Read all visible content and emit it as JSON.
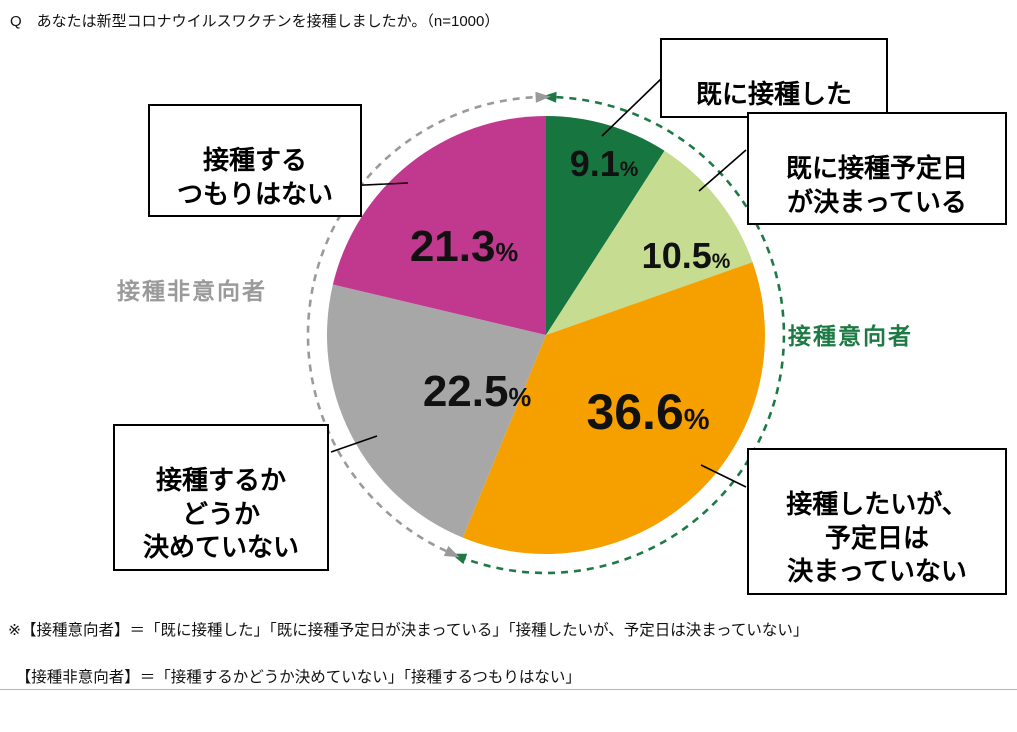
{
  "page": {
    "question": "Q　あなたは新型コロナウイルスワクチンを接種しましたか。（n=1000）",
    "footnote": {
      "line1": "※【接種意向者】＝「既に接種した」「既に接種予定日が決まっている」「接種したいが、予定日は決まっていない」",
      "line2": "　【接種非意向者】＝「接種するかどうか決めていない」「接種するつもりはない」"
    }
  },
  "chart_data": {
    "type": "pie",
    "title": "あなたは新型コロナウイルスワクチンを接種しましたか。",
    "sample_size_label": "n=1000",
    "unit": "%",
    "start_angle_deg": 0,
    "direction": "clockwise",
    "segments": [
      {
        "id": "already-vaccinated",
        "label": "既に接種した",
        "value": 9.1,
        "color": "#17753f"
      },
      {
        "id": "date-scheduled",
        "label": "既に接種予定日が決まっている",
        "value": 10.5,
        "color": "#c6dc91"
      },
      {
        "id": "want-but-no-date",
        "label": "接種したいが、予定日は決まっていない",
        "value": 36.6,
        "color": "#f6a000"
      },
      {
        "id": "undecided",
        "label": "接種するかどうか決めていない",
        "value": 22.5,
        "color": "#a7a7a7"
      },
      {
        "id": "no-intention",
        "label": "接種するつもりはない",
        "value": 21.3,
        "color": "#c1388f"
      }
    ],
    "groups": [
      {
        "id": "intenders",
        "label": "接種意向者",
        "value": 56.2,
        "start_pct": 0,
        "end_pct": 56.2,
        "color": "#1e7a45"
      },
      {
        "id": "non-intenders",
        "label": "接種非意向者",
        "value": 43.8,
        "start_pct": 56.2,
        "end_pct": 100,
        "color": "#9a9a9a"
      }
    ],
    "callouts": [
      {
        "segment": "already-vaccinated",
        "text": "既に接種した"
      },
      {
        "segment": "date-scheduled",
        "text": "既に接種予定日\nが決まっている"
      },
      {
        "segment": "want-but-no-date",
        "text": "接種したいが、\n予定日は\n決まっていない"
      },
      {
        "segment": "undecided",
        "text": "接種するか\nどうか\n決めていない"
      },
      {
        "segment": "no-intention",
        "text": "接種する\nつもりはない"
      }
    ]
  }
}
